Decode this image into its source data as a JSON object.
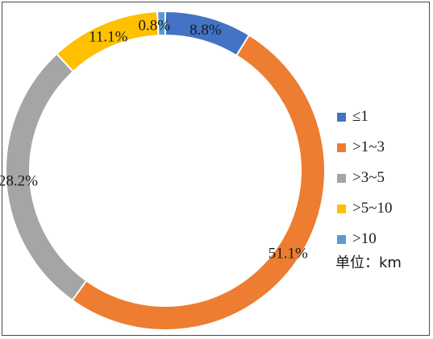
{
  "chart_data": {
    "type": "pie",
    "donut": true,
    "categories": [
      "≤1",
      ">1~3",
      ">3~5",
      ">5~10",
      ">10"
    ],
    "values": [
      8.8,
      51.1,
      28.2,
      11.1,
      0.8
    ],
    "labels": [
      "8.8%",
      "51.1%",
      "28.2%",
      "11.1%",
      "0.8%"
    ],
    "colors": [
      "#4472C4",
      "#ED7D31",
      "#A5A5A5",
      "#FFC000",
      "#5B9BD5"
    ],
    "legend_position": "right",
    "unit_label": "单位：km"
  }
}
